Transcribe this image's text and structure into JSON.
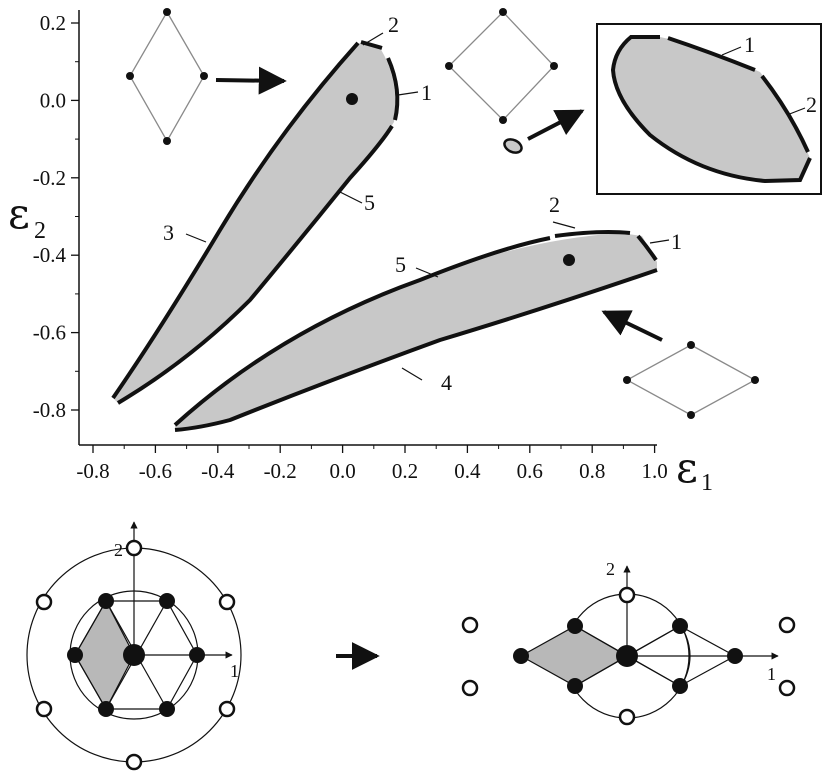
{
  "axes": {
    "x_ticks": [
      "-0.8",
      "-0.6",
      "-0.4",
      "-0.2",
      "0.0",
      "0.2",
      "0.4",
      "0.6",
      "0.8",
      "1.0"
    ],
    "y_ticks": [
      "0.2",
      "0.0",
      "-0.2",
      "-0.4",
      "-0.6",
      "-0.8"
    ],
    "x_symbol": "ε",
    "x_subscript": "1",
    "y_symbol": "ε",
    "y_subscript": "2"
  },
  "region_upper": {
    "labels": [
      "1",
      "2",
      "3",
      "5"
    ]
  },
  "region_lower": {
    "labels": [
      "1",
      "2",
      "4",
      "5"
    ]
  },
  "inset": {
    "labels": [
      "1",
      "2"
    ]
  },
  "lattice_left": {
    "axis_labels": [
      "1",
      "2"
    ]
  },
  "lattice_right": {
    "axis_labels": [
      "1",
      "2"
    ]
  },
  "colors": {
    "region_fill": "#c8c8c8",
    "line": "#111111",
    "thin_line": "#8a8a8a"
  }
}
